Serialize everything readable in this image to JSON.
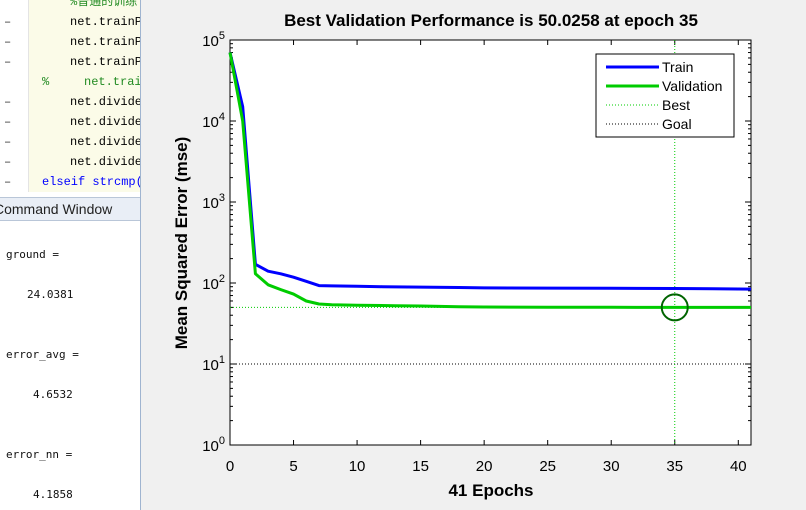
{
  "editor": {
    "lines": [
      {
        "marker": "",
        "text": "%普通的训练",
        "color": "#228b22"
      },
      {
        "marker": "–",
        "text": "net.trainP",
        "color": "#000000"
      },
      {
        "marker": "–",
        "text": "net.trainP",
        "color": "#000000"
      },
      {
        "marker": "–",
        "text": "net.trainP",
        "color": "#000000"
      },
      {
        "marker": "%",
        "text": "net.trai",
        "color": "#228b22"
      },
      {
        "marker": "–",
        "text": "net.divide",
        "color": "#000000"
      },
      {
        "marker": "–",
        "text": "net.divide",
        "color": "#000000"
      },
      {
        "marker": "–",
        "text": "net.divide",
        "color": "#000000"
      },
      {
        "marker": "–",
        "text": "net.divide",
        "color": "#000000"
      },
      {
        "marker": "–",
        "text": "elseif strcmp(",
        "color": "#0000ff"
      }
    ]
  },
  "command_window": {
    "title": "Command Window",
    "lines": [
      "ground =",
      "24.0381",
      "error_avg =",
      "4.6532",
      "error_nn =",
      "4.1858"
    ]
  },
  "chart_data": {
    "type": "line",
    "title": "Best Validation Performance is 50.0258 at epoch 35",
    "xlabel": "41 Epochs",
    "ylabel": "Mean Squared Error  (mse)",
    "xlim": [
      0,
      41
    ],
    "ylim": [
      1,
      100000
    ],
    "yscale": "log",
    "xticks": [
      0,
      5,
      10,
      15,
      20,
      25,
      30,
      35,
      40
    ],
    "yticks": [
      {
        "value": 1,
        "base": "10",
        "exp": "0"
      },
      {
        "value": 10,
        "base": "10",
        "exp": "1"
      },
      {
        "value": 100,
        "base": "10",
        "exp": "2"
      },
      {
        "value": 1000,
        "base": "10",
        "exp": "3"
      },
      {
        "value": 10000,
        "base": "10",
        "exp": "4"
      },
      {
        "value": 100000,
        "base": "10",
        "exp": "5"
      }
    ],
    "series": [
      {
        "name": "Train",
        "color": "#0000ff",
        "points": [
          [
            0,
            70000
          ],
          [
            1,
            15000
          ],
          [
            2,
            170
          ],
          [
            3,
            140
          ],
          [
            4,
            130
          ],
          [
            5,
            118
          ],
          [
            6,
            105
          ],
          [
            7,
            93
          ],
          [
            8,
            92
          ],
          [
            10,
            91
          ],
          [
            12,
            90
          ],
          [
            15,
            89
          ],
          [
            18,
            88
          ],
          [
            20,
            87
          ],
          [
            25,
            86.5
          ],
          [
            30,
            86
          ],
          [
            35,
            85.5
          ],
          [
            38,
            85
          ],
          [
            41,
            84
          ]
        ]
      },
      {
        "name": "Validation",
        "color": "#00cc00",
        "points": [
          [
            0,
            70000
          ],
          [
            1,
            10000
          ],
          [
            2,
            130
          ],
          [
            3,
            95
          ],
          [
            4,
            83
          ],
          [
            5,
            73
          ],
          [
            6,
            60
          ],
          [
            7,
            55
          ],
          [
            8,
            54
          ],
          [
            10,
            53
          ],
          [
            13,
            52.5
          ],
          [
            15,
            52
          ],
          [
            18,
            51
          ],
          [
            20,
            50.5
          ],
          [
            25,
            50.3
          ],
          [
            30,
            50.1
          ],
          [
            35,
            50.0258
          ],
          [
            38,
            50
          ],
          [
            41,
            50
          ]
        ]
      }
    ],
    "best": {
      "epoch": 35,
      "value": 50.0258,
      "label": "Best",
      "color": "#00cc00"
    },
    "goal": {
      "value": 10,
      "label": "Goal",
      "color": "#000000"
    },
    "legend_position": "top-right"
  }
}
